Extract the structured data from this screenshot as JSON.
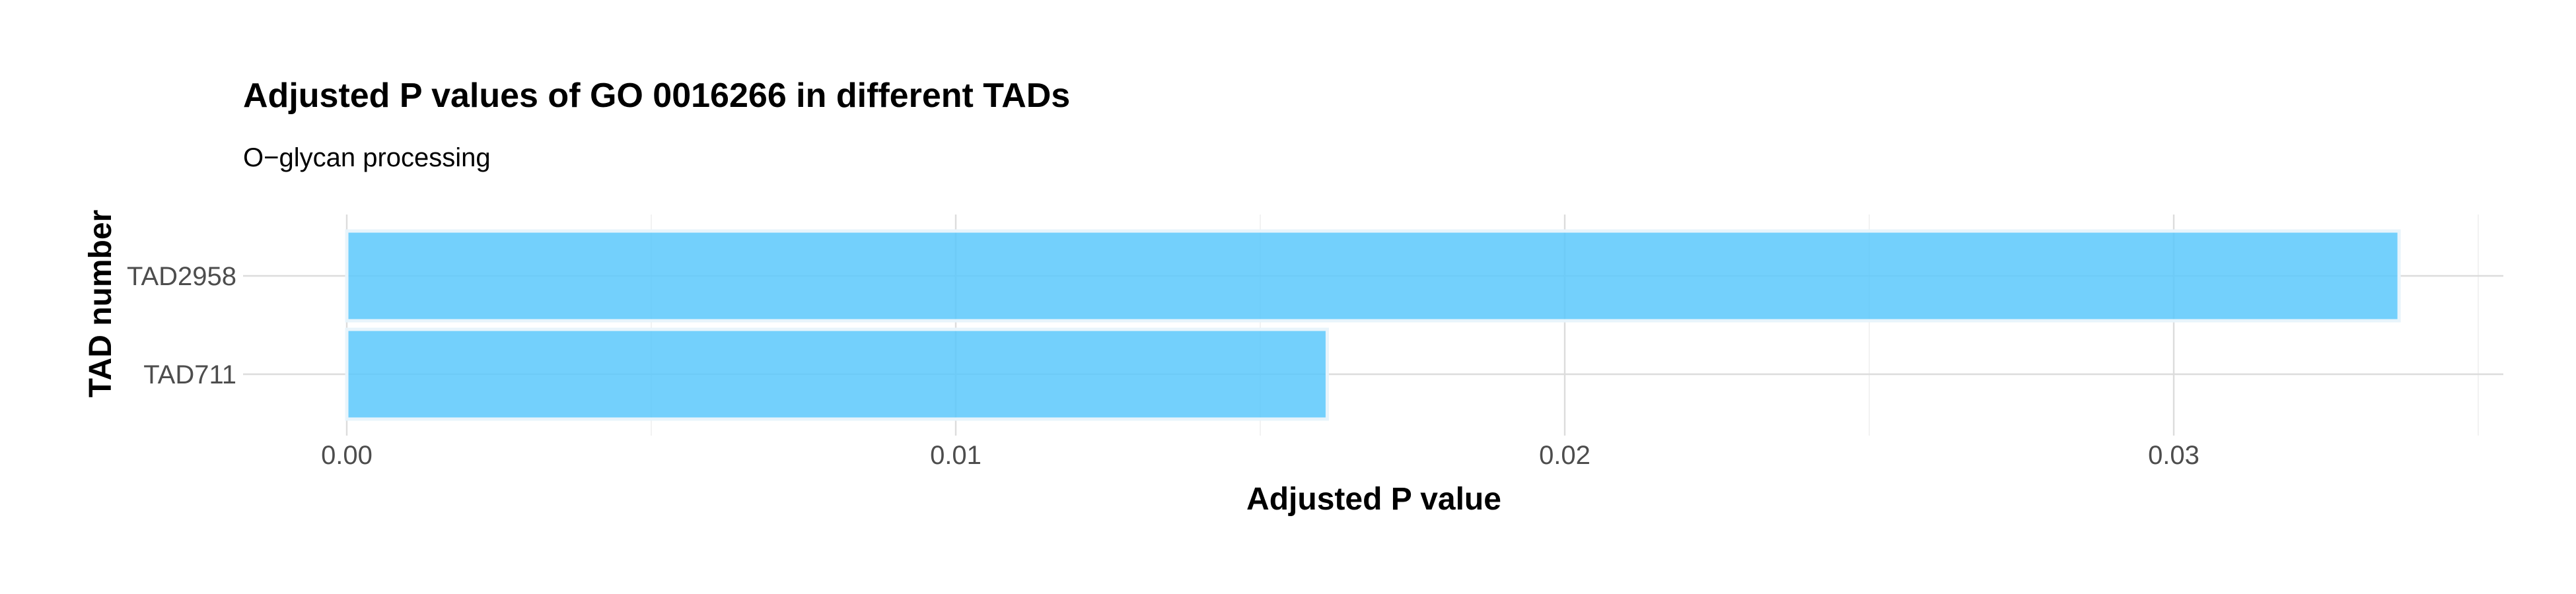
{
  "chart_data": {
    "type": "bar",
    "orientation": "horizontal",
    "title": "Adjusted P values of GO 0016266 in different TADs",
    "subtitle": "O−glycan processing",
    "xlabel": "Adjusted P value",
    "ylabel": "TAD number",
    "categories": [
      "TAD2958",
      "TAD711"
    ],
    "values": [
      0.0337,
      0.0161
    ],
    "xlim": [
      0,
      0.035
    ],
    "xticks": [
      0.0,
      0.01,
      0.02,
      0.03
    ],
    "xtick_labels": [
      "0.00",
      "0.01",
      "0.02",
      "0.03"
    ],
    "grid": true,
    "colors": {
      "bar_fill": "#5bc8fb",
      "bar_stroke": "#e8f4fb",
      "grid": "#dcdcdc"
    }
  }
}
